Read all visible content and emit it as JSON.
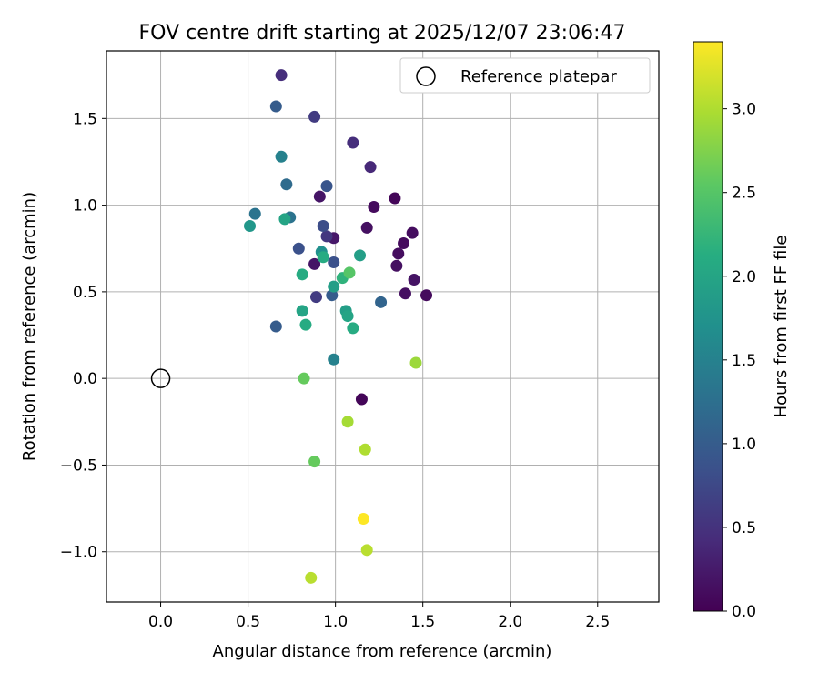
{
  "chart_data": {
    "type": "scatter",
    "title": "FOV centre drift starting at 2025/12/07 23:06:47",
    "xlabel": "Angular distance from reference (arcmin)",
    "ylabel": "Rotation from reference (arcmin)",
    "xlim": [
      -0.31,
      2.85
    ],
    "ylim": [
      -1.29,
      1.89
    ],
    "xticks": [
      0.0,
      0.5,
      1.0,
      1.5,
      2.0,
      2.5
    ],
    "yticks": [
      -1.0,
      -0.5,
      0.0,
      0.5,
      1.0,
      1.5
    ],
    "xtick_labels": [
      "0.0",
      "0.5",
      "1.0",
      "1.5",
      "2.0",
      "2.5"
    ],
    "ytick_labels": [
      "−1.0",
      "−0.5",
      "0.0",
      "0.5",
      "1.0",
      "1.5"
    ],
    "grid": true,
    "legend": {
      "placement": "top-right",
      "entries": [
        "Reference platepar"
      ]
    },
    "reference_point": {
      "name": "Reference platepar",
      "x": 0.0,
      "y": 0.0,
      "marker": "hollow-circle"
    },
    "colormap": "viridis",
    "colorbar": {
      "label": "Hours from first FF file",
      "range": [
        0.0,
        3.4
      ],
      "ticks": [
        0.0,
        0.5,
        1.0,
        1.5,
        2.0,
        2.5,
        3.0
      ],
      "tick_labels": [
        "0.0",
        "0.5",
        "1.0",
        "1.5",
        "2.0",
        "2.5",
        "3.0"
      ]
    },
    "points": [
      {
        "x": 1.34,
        "y": 1.04,
        "c": 0.05
      },
      {
        "x": 1.22,
        "y": 0.99,
        "c": 0.1
      },
      {
        "x": 1.44,
        "y": 0.84,
        "c": 0.12
      },
      {
        "x": 1.18,
        "y": 0.87,
        "c": 0.15
      },
      {
        "x": 1.39,
        "y": 0.78,
        "c": 0.1
      },
      {
        "x": 1.36,
        "y": 0.72,
        "c": 0.12
      },
      {
        "x": 1.35,
        "y": 0.65,
        "c": 0.15
      },
      {
        "x": 1.45,
        "y": 0.57,
        "c": 0.18
      },
      {
        "x": 1.4,
        "y": 0.49,
        "c": 0.14
      },
      {
        "x": 1.52,
        "y": 0.48,
        "c": 0.1
      },
      {
        "x": 0.91,
        "y": 1.05,
        "c": 0.2
      },
      {
        "x": 0.99,
        "y": 0.81,
        "c": 0.22
      },
      {
        "x": 0.88,
        "y": 0.66,
        "c": 0.2
      },
      {
        "x": 1.15,
        "y": -0.12,
        "c": 0.05
      },
      {
        "x": 0.69,
        "y": 1.75,
        "c": 0.45
      },
      {
        "x": 0.88,
        "y": 1.51,
        "c": 0.6
      },
      {
        "x": 1.1,
        "y": 1.36,
        "c": 0.45
      },
      {
        "x": 1.2,
        "y": 1.22,
        "c": 0.4
      },
      {
        "x": 0.95,
        "y": 0.82,
        "c": 0.55
      },
      {
        "x": 0.89,
        "y": 0.47,
        "c": 0.6
      },
      {
        "x": 0.66,
        "y": 1.57,
        "c": 1.0
      },
      {
        "x": 0.95,
        "y": 1.11,
        "c": 0.9
      },
      {
        "x": 0.72,
        "y": 1.12,
        "c": 1.2
      },
      {
        "x": 0.54,
        "y": 0.95,
        "c": 1.3
      },
      {
        "x": 0.93,
        "y": 0.88,
        "c": 0.8
      },
      {
        "x": 0.74,
        "y": 0.93,
        "c": 1.3
      },
      {
        "x": 0.79,
        "y": 0.75,
        "c": 0.85
      },
      {
        "x": 0.99,
        "y": 0.67,
        "c": 0.85
      },
      {
        "x": 0.98,
        "y": 0.48,
        "c": 1.0
      },
      {
        "x": 1.26,
        "y": 0.44,
        "c": 1.1
      },
      {
        "x": 0.66,
        "y": 0.3,
        "c": 1.0
      },
      {
        "x": 0.69,
        "y": 1.28,
        "c": 1.5
      },
      {
        "x": 0.99,
        "y": 0.11,
        "c": 1.5
      },
      {
        "x": 0.51,
        "y": 0.88,
        "c": 1.8
      },
      {
        "x": 0.71,
        "y": 0.92,
        "c": 2.0
      },
      {
        "x": 0.92,
        "y": 0.73,
        "c": 1.7
      },
      {
        "x": 1.14,
        "y": 0.71,
        "c": 1.9
      },
      {
        "x": 0.93,
        "y": 0.7,
        "c": 2.1
      },
      {
        "x": 0.81,
        "y": 0.6,
        "c": 2.1
      },
      {
        "x": 1.04,
        "y": 0.58,
        "c": 2.2
      },
      {
        "x": 0.99,
        "y": 0.53,
        "c": 1.9
      },
      {
        "x": 1.06,
        "y": 0.39,
        "c": 1.9
      },
      {
        "x": 1.07,
        "y": 0.36,
        "c": 2.0
      },
      {
        "x": 0.81,
        "y": 0.39,
        "c": 2.0
      },
      {
        "x": 0.83,
        "y": 0.31,
        "c": 2.1
      },
      {
        "x": 1.1,
        "y": 0.29,
        "c": 2.1
      },
      {
        "x": 1.08,
        "y": 0.61,
        "c": 2.5
      },
      {
        "x": 0.82,
        "y": 0.0,
        "c": 2.6
      },
      {
        "x": 0.88,
        "y": -0.48,
        "c": 2.6
      },
      {
        "x": 1.46,
        "y": 0.09,
        "c": 2.9
      },
      {
        "x": 1.07,
        "y": -0.25,
        "c": 2.95
      },
      {
        "x": 1.17,
        "y": -0.41,
        "c": 3.0
      },
      {
        "x": 1.16,
        "y": -0.81,
        "c": 3.4
      },
      {
        "x": 1.18,
        "y": -0.99,
        "c": 3.05
      },
      {
        "x": 0.86,
        "y": -1.15,
        "c": 3.05
      }
    ]
  }
}
